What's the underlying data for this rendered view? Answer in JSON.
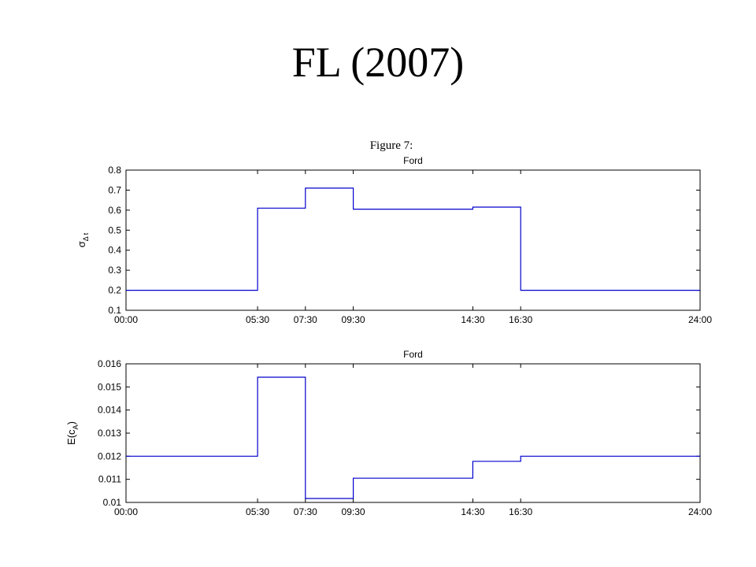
{
  "slide": {
    "title": "FL (2007)"
  },
  "figure": {
    "heading": "Figure 7:"
  },
  "chart_data": [
    {
      "type": "line",
      "step": true,
      "title": "Ford",
      "ylabel": "σ",
      "ylabel_subscript": "Δ t",
      "xlabel": "",
      "xlim": [
        0,
        24
      ],
      "ylim": [
        0.1,
        0.8
      ],
      "x_ticks": [
        0,
        5.5,
        7.5,
        9.5,
        14.5,
        16.5,
        24
      ],
      "x_tick_labels": [
        "00:00",
        "05:30",
        "07:30",
        "09:30",
        "14:30",
        "16:30",
        "24:00"
      ],
      "y_ticks": [
        0.1,
        0.2,
        0.3,
        0.4,
        0.5,
        0.6,
        0.7,
        0.8
      ],
      "y_tick_labels": [
        "0.1",
        "0.2",
        "0.3",
        "0.4",
        "0.5",
        "0.6",
        "0.7",
        "0.8"
      ],
      "grid": false,
      "series": [
        {
          "color": "#0000cc",
          "segments": [
            {
              "x_start": 0,
              "x_end": 5.5,
              "value": 0.2
            },
            {
              "x_start": 5.5,
              "x_end": 7.5,
              "value": 0.61
            },
            {
              "x_start": 7.5,
              "x_end": 9.5,
              "value": 0.71
            },
            {
              "x_start": 9.5,
              "x_end": 14.5,
              "value": 0.605
            },
            {
              "x_start": 14.5,
              "x_end": 16.5,
              "value": 0.615
            },
            {
              "x_start": 16.5,
              "x_end": 24,
              "value": 0.2
            }
          ]
        }
      ]
    },
    {
      "type": "line",
      "step": true,
      "title": "Ford",
      "ylabel": "E(c",
      "ylabel_subscript": "A",
      "ylabel_suffix": ")",
      "xlabel": "",
      "xlim": [
        0,
        24
      ],
      "ylim": [
        0.01,
        0.016
      ],
      "x_ticks": [
        0,
        5.5,
        7.5,
        9.5,
        14.5,
        16.5,
        24
      ],
      "x_tick_labels": [
        "00:00",
        "05:30",
        "07:30",
        "09:30",
        "14:30",
        "16:30",
        "24:00"
      ],
      "y_ticks": [
        0.01,
        0.011,
        0.012,
        0.013,
        0.014,
        0.015,
        0.016
      ],
      "y_tick_labels": [
        "0.01",
        "0.011",
        "0.012",
        "0.013",
        "0.014",
        "0.015",
        "0.016"
      ],
      "grid": false,
      "series": [
        {
          "color": "#0000cc",
          "segments": [
            {
              "x_start": 0,
              "x_end": 5.5,
              "value": 0.012
            },
            {
              "x_start": 5.5,
              "x_end": 7.5,
              "value": 0.01542
            },
            {
              "x_start": 7.5,
              "x_end": 9.5,
              "value": 0.01017
            },
            {
              "x_start": 9.5,
              "x_end": 14.5,
              "value": 0.01105
            },
            {
              "x_start": 14.5,
              "x_end": 16.5,
              "value": 0.01178
            },
            {
              "x_start": 16.5,
              "x_end": 24,
              "value": 0.012
            }
          ]
        }
      ]
    }
  ]
}
